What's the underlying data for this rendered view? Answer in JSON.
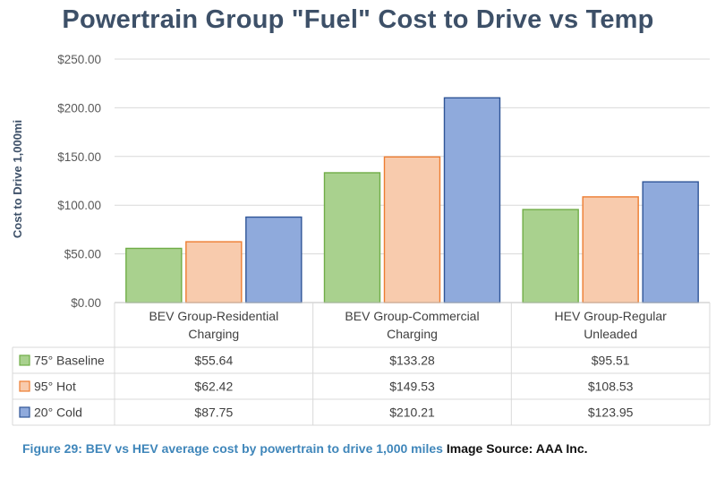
{
  "chart_data": {
    "type": "bar",
    "title": "Powertrain Group \"Fuel\" Cost to Drive vs Temp",
    "ylabel": "Cost to Drive 1,000mi",
    "xlabel": "",
    "ylim": [
      0,
      250
    ],
    "yticks": [
      "$0.00",
      "$50.00",
      "$100.00",
      "$150.00",
      "$200.00",
      "$250.00"
    ],
    "ytick_values": [
      0,
      50,
      100,
      150,
      200,
      250
    ],
    "grid": true,
    "legend": "data-table",
    "categories": [
      [
        "BEV Group-Residential",
        "Charging"
      ],
      [
        "BEV Group-Commercial",
        "Charging"
      ],
      [
        "HEV Group-Regular",
        "Unleaded"
      ]
    ],
    "series": [
      {
        "name": "75° Baseline",
        "color": "#a9d18e",
        "edge": "#70ad47",
        "values": [
          55.64,
          133.28,
          95.51
        ],
        "labels": [
          "$55.64",
          "$133.28",
          "$95.51"
        ]
      },
      {
        "name": "95° Hot",
        "color": "#f8cbad",
        "edge": "#ed7d31",
        "values": [
          62.42,
          149.53,
          108.53
        ],
        "labels": [
          "$62.42",
          "$149.53",
          "$108.53"
        ]
      },
      {
        "name": "20° Cold",
        "color": "#8faadc",
        "edge": "#2f5597",
        "values": [
          87.75,
          210.21,
          123.95
        ],
        "labels": [
          "$87.75",
          "$210.21",
          "$123.95"
        ]
      }
    ]
  },
  "caption": {
    "figure": "Figure 29: BEV vs HEV average cost by powertrain to drive 1,000 miles",
    "source": "Image Source: AAA Inc."
  }
}
